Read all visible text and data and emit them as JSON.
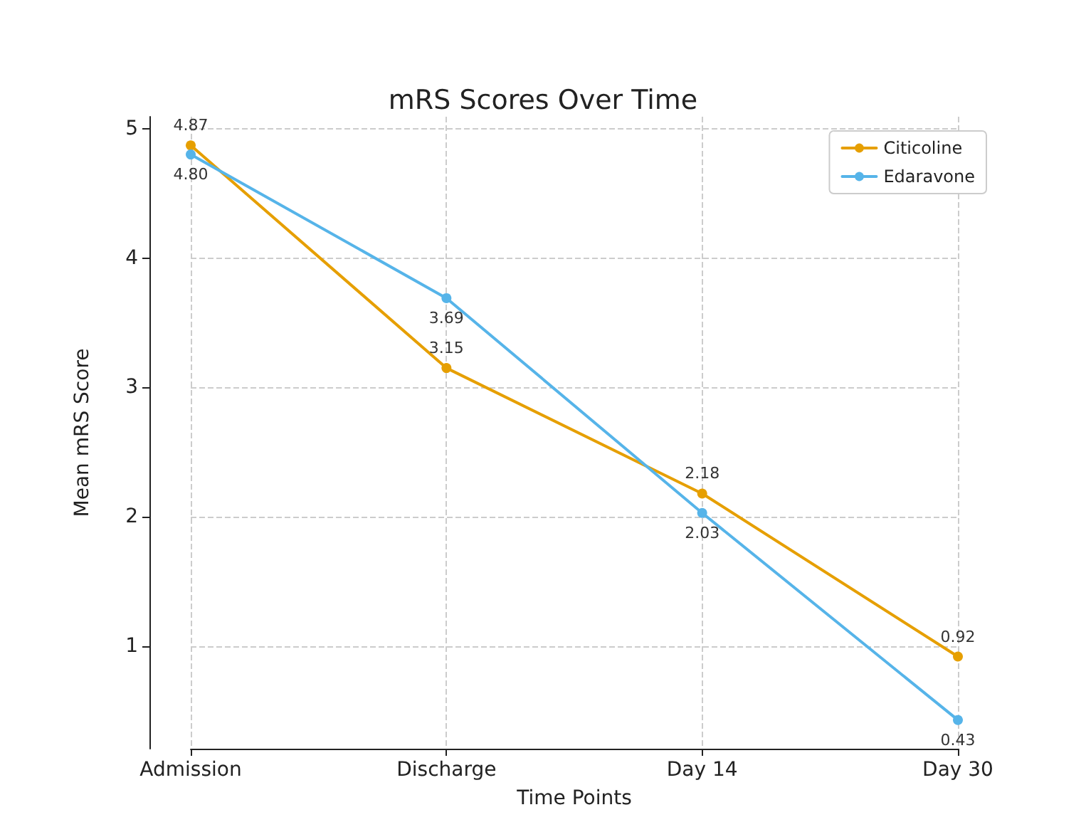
{
  "chart_data": {
    "type": "line",
    "title": "mRS Scores Over Time",
    "xlabel": "Time Points",
    "ylabel": "Mean mRS Score",
    "categories": [
      "Admission",
      "Discharge",
      "Day 14",
      "Day 30"
    ],
    "series": [
      {
        "name": "Citicoline",
        "color": "#e69f00",
        "values": [
          4.87,
          3.15,
          2.18,
          0.92
        ],
        "value_labels": [
          "4.87",
          "3.15",
          "2.18",
          "0.92"
        ]
      },
      {
        "name": "Edaravone",
        "color": "#56b4e9",
        "values": [
          4.8,
          3.69,
          2.03,
          0.43
        ],
        "value_labels": [
          "4.80",
          "3.69",
          "2.03",
          "0.43"
        ]
      }
    ],
    "ylim": [
      0.208,
      5.092
    ],
    "yticks": [
      1,
      2,
      3,
      4,
      5
    ],
    "grid": true,
    "legend": "top right",
    "marker": "circle",
    "line_style": "solid"
  }
}
